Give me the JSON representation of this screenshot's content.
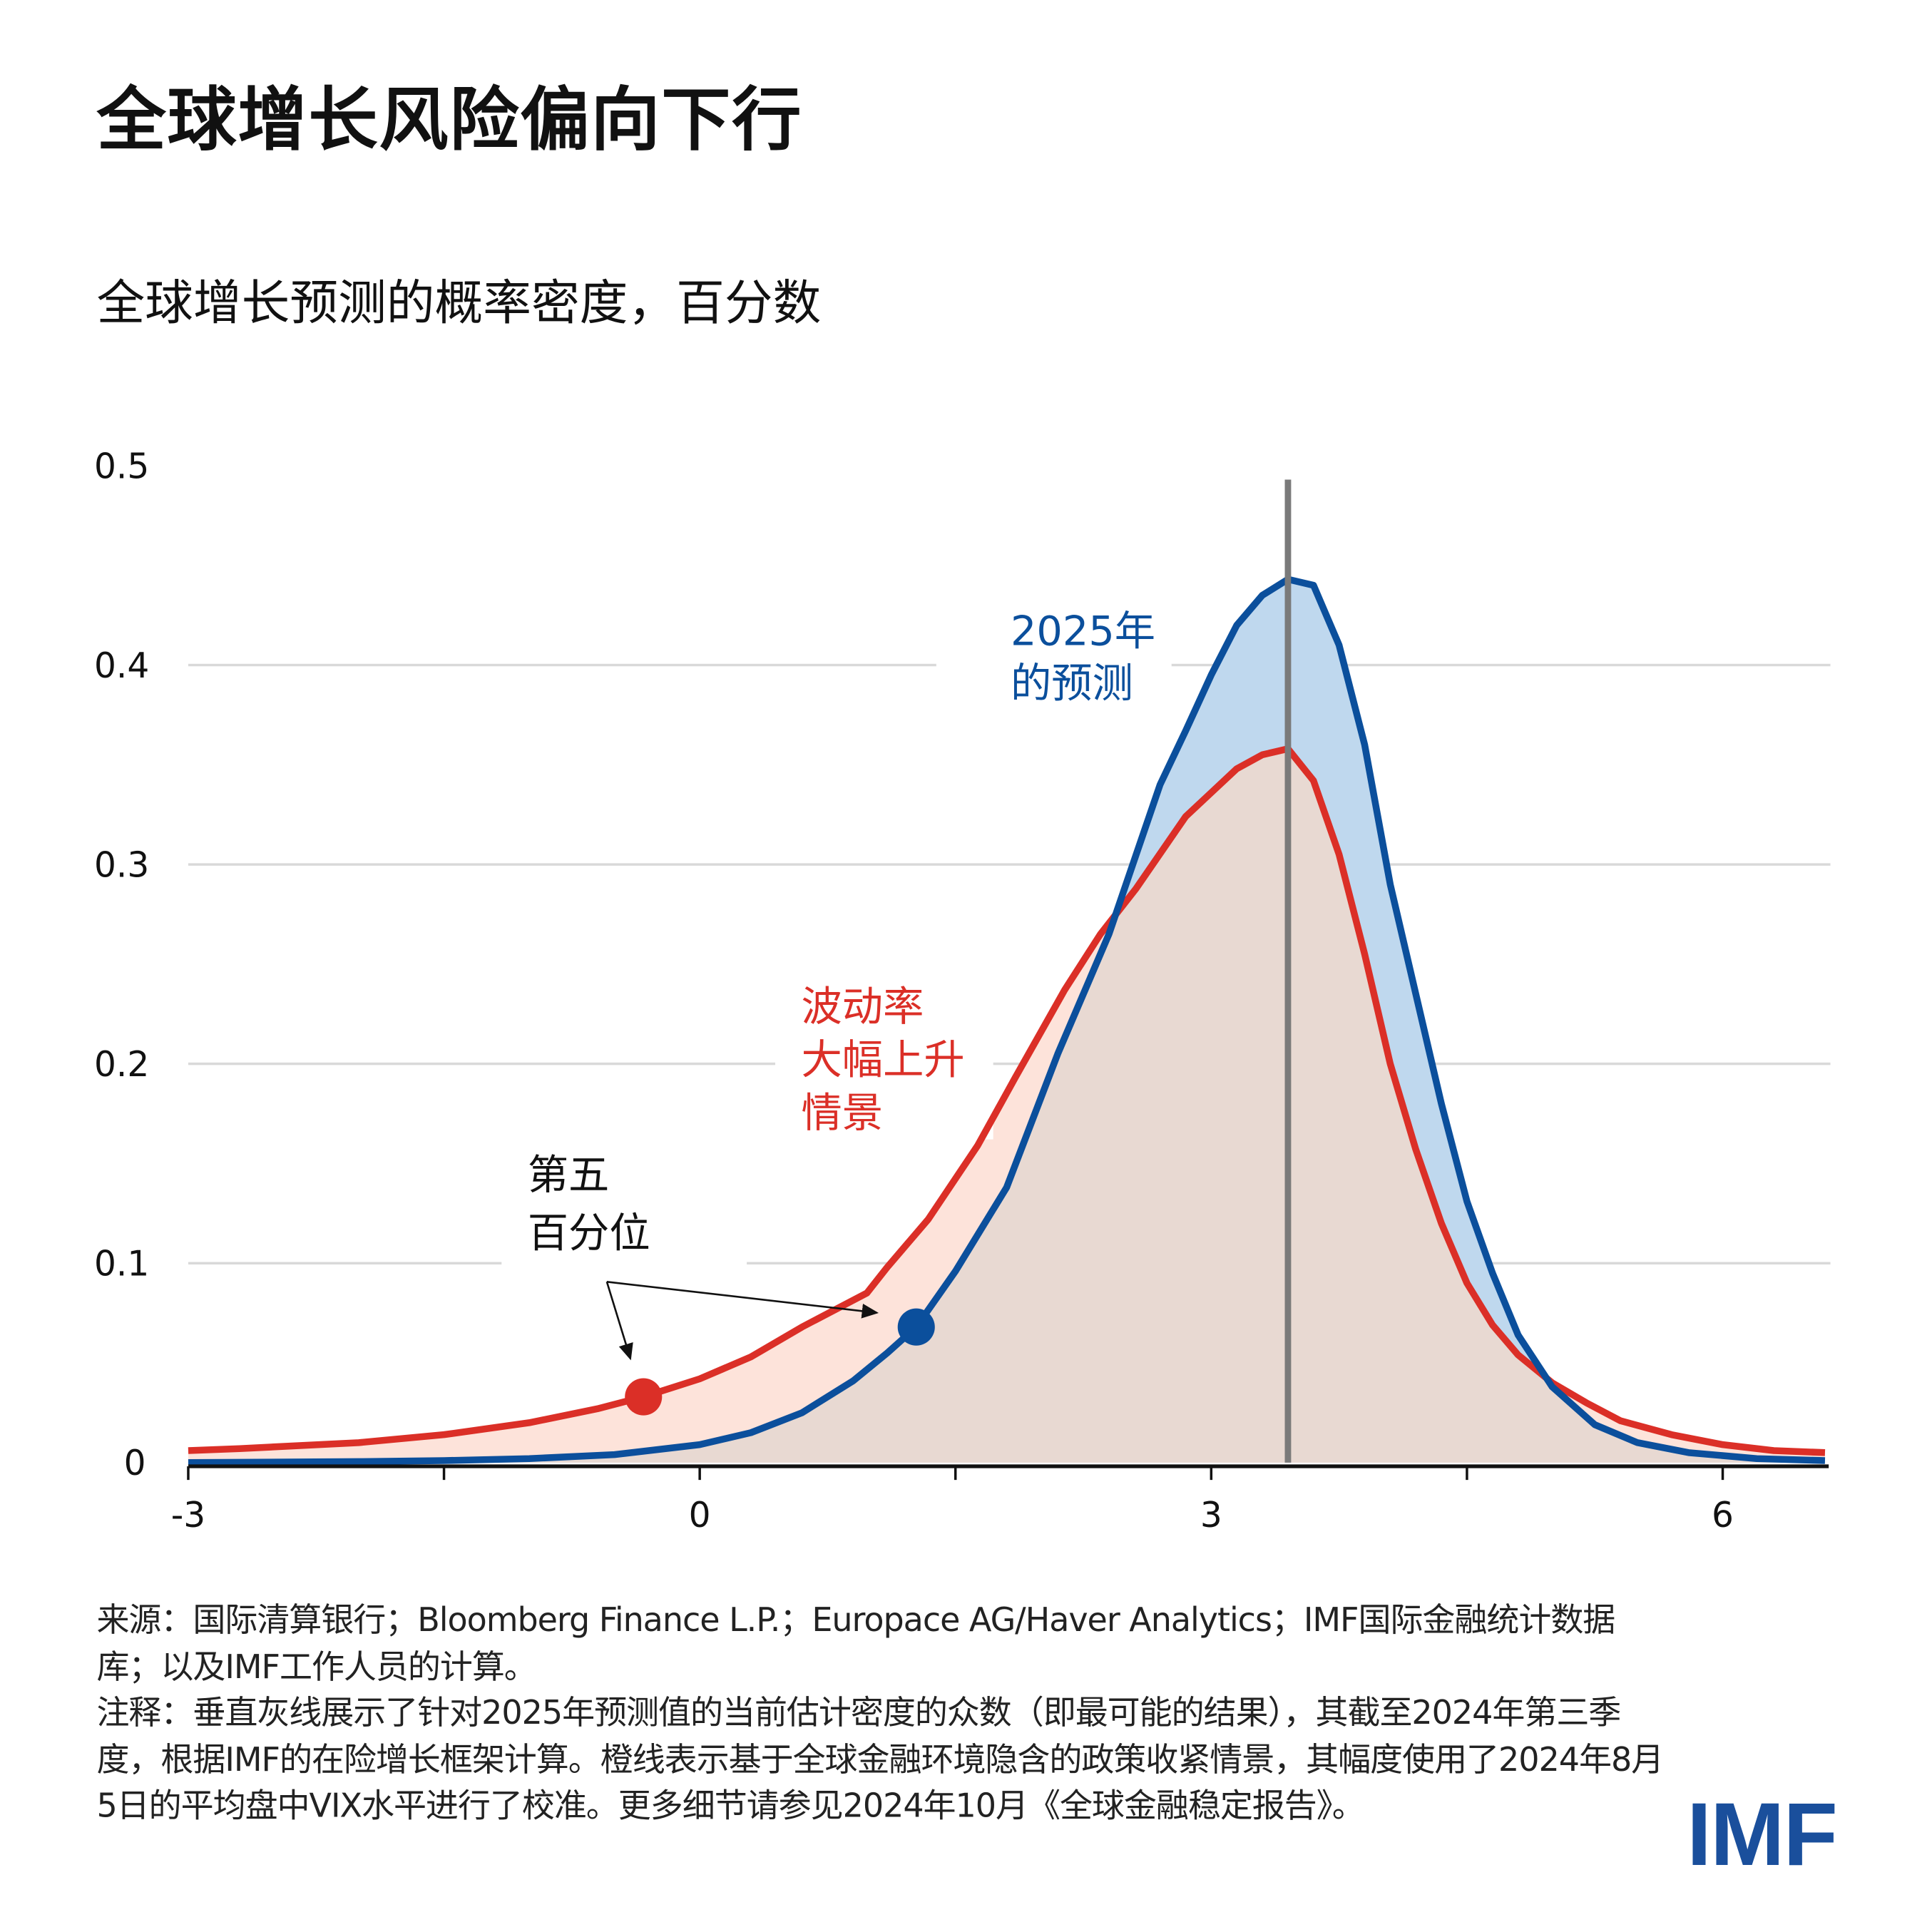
{
  "title": "全球增长风险偏向下行",
  "subtitle": "全球增长预测的概率密度，百分数",
  "chart_data": {
    "type": "area",
    "title": "全球增长风险偏向下行",
    "subtitle": "全球增长预测的概率密度，百分数",
    "xlim": [
      -3,
      6.6
    ],
    "ylim": [
      0,
      0.5
    ],
    "x_ticks": [
      -3,
      -1.5,
      0,
      1.5,
      3,
      4.5,
      6
    ],
    "x_tick_labels": [
      "-3",
      "",
      "0",
      "",
      "3",
      "",
      "6"
    ],
    "y_ticks": [
      0,
      0.1,
      0.2,
      0.3,
      0.4,
      0.5
    ],
    "y_tick_labels": [
      "0",
      "0.1",
      "0.2",
      "0.3",
      "0.4",
      "0.5"
    ],
    "grid": "horizontal",
    "mode_line": {
      "x": 3.45,
      "color": "#7a7a7a"
    },
    "series": [
      {
        "name": "2025年的预测",
        "color": "#0b4f9c",
        "fill": "#bfd8ee",
        "points": [
          [
            -3,
            0.0
          ],
          [
            -2,
            0.0005
          ],
          [
            -1.5,
            0.001
          ],
          [
            -1,
            0.002
          ],
          [
            -0.5,
            0.004
          ],
          [
            0,
            0.009
          ],
          [
            0.3,
            0.015
          ],
          [
            0.6,
            0.025
          ],
          [
            0.9,
            0.041
          ],
          [
            1.1,
            0.055
          ],
          [
            1.27,
            0.068
          ],
          [
            1.5,
            0.096
          ],
          [
            1.8,
            0.138
          ],
          [
            2.1,
            0.205
          ],
          [
            2.4,
            0.265
          ],
          [
            2.56,
            0.305
          ],
          [
            2.7,
            0.34
          ],
          [
            2.85,
            0.367
          ],
          [
            3.0,
            0.395
          ],
          [
            3.15,
            0.42
          ],
          [
            3.3,
            0.435
          ],
          [
            3.45,
            0.443
          ],
          [
            3.6,
            0.44
          ],
          [
            3.75,
            0.41
          ],
          [
            3.9,
            0.36
          ],
          [
            4.05,
            0.29
          ],
          [
            4.2,
            0.235
          ],
          [
            4.35,
            0.18
          ],
          [
            4.5,
            0.131
          ],
          [
            4.65,
            0.095
          ],
          [
            4.8,
            0.064
          ],
          [
            5.0,
            0.038
          ],
          [
            5.25,
            0.019
          ],
          [
            5.5,
            0.01
          ],
          [
            5.8,
            0.005
          ],
          [
            6.2,
            0.002
          ],
          [
            6.6,
            0.001
          ]
        ],
        "percentile5": [
          1.27,
          0.068
        ]
      },
      {
        "name": "波动率大幅上升情景",
        "color": "#db2f27",
        "fill": "#fde3da",
        "points": [
          [
            -3,
            0.006
          ],
          [
            -2.7,
            0.007
          ],
          [
            -2,
            0.01
          ],
          [
            -1.5,
            0.014
          ],
          [
            -1,
            0.02
          ],
          [
            -0.6,
            0.027
          ],
          [
            -0.33,
            0.033
          ],
          [
            0,
            0.042
          ],
          [
            0.3,
            0.053
          ],
          [
            0.6,
            0.068
          ],
          [
            0.98,
            0.085
          ],
          [
            1.1,
            0.098
          ],
          [
            1.34,
            0.122
          ],
          [
            1.63,
            0.159
          ],
          [
            1.85,
            0.193
          ],
          [
            2.14,
            0.237
          ],
          [
            2.35,
            0.265
          ],
          [
            2.56,
            0.288
          ],
          [
            2.85,
            0.324
          ],
          [
            3.0,
            0.336
          ],
          [
            3.15,
            0.348
          ],
          [
            3.3,
            0.355
          ],
          [
            3.45,
            0.358
          ],
          [
            3.6,
            0.342
          ],
          [
            3.75,
            0.305
          ],
          [
            3.9,
            0.255
          ],
          [
            4.05,
            0.2
          ],
          [
            4.2,
            0.157
          ],
          [
            4.35,
            0.12
          ],
          [
            4.5,
            0.09
          ],
          [
            4.65,
            0.069
          ],
          [
            4.8,
            0.054
          ],
          [
            5.0,
            0.04
          ],
          [
            5.2,
            0.03
          ],
          [
            5.4,
            0.021
          ],
          [
            5.7,
            0.014
          ],
          [
            6.0,
            0.009
          ],
          [
            6.3,
            0.006
          ],
          [
            6.6,
            0.005
          ]
        ],
        "percentile5": [
          -0.33,
          0.033
        ]
      }
    ],
    "overlap_fill": "#e8d9d2",
    "annotations": {
      "blue_label": [
        "2025年",
        "的预测"
      ],
      "red_label": [
        "波动率",
        "大幅上升",
        "情景"
      ],
      "percentile_label": [
        "第五",
        "百分位"
      ]
    }
  },
  "footer": {
    "source": "来源：国际清算银行；Bloomberg Finance L.P.；Europace AG/Haver Analytics；IMF国际金融统计数据库；以及IMF工作人员的计算。",
    "note": "注释：垂直灰线展示了针对2025年预测值的当前估计密度的众数（即最可能的结果），其截至2024年第三季度，根据IMF的在险增长框架计算。橙线表示基于全球金融环境隐含的政策收紧情景，其幅度使用了2024年8月5日的平均盘中VIX水平进行了校准。更多细节请参见2024年10月《全球金融稳定报告》。"
  },
  "logo": "IMF"
}
